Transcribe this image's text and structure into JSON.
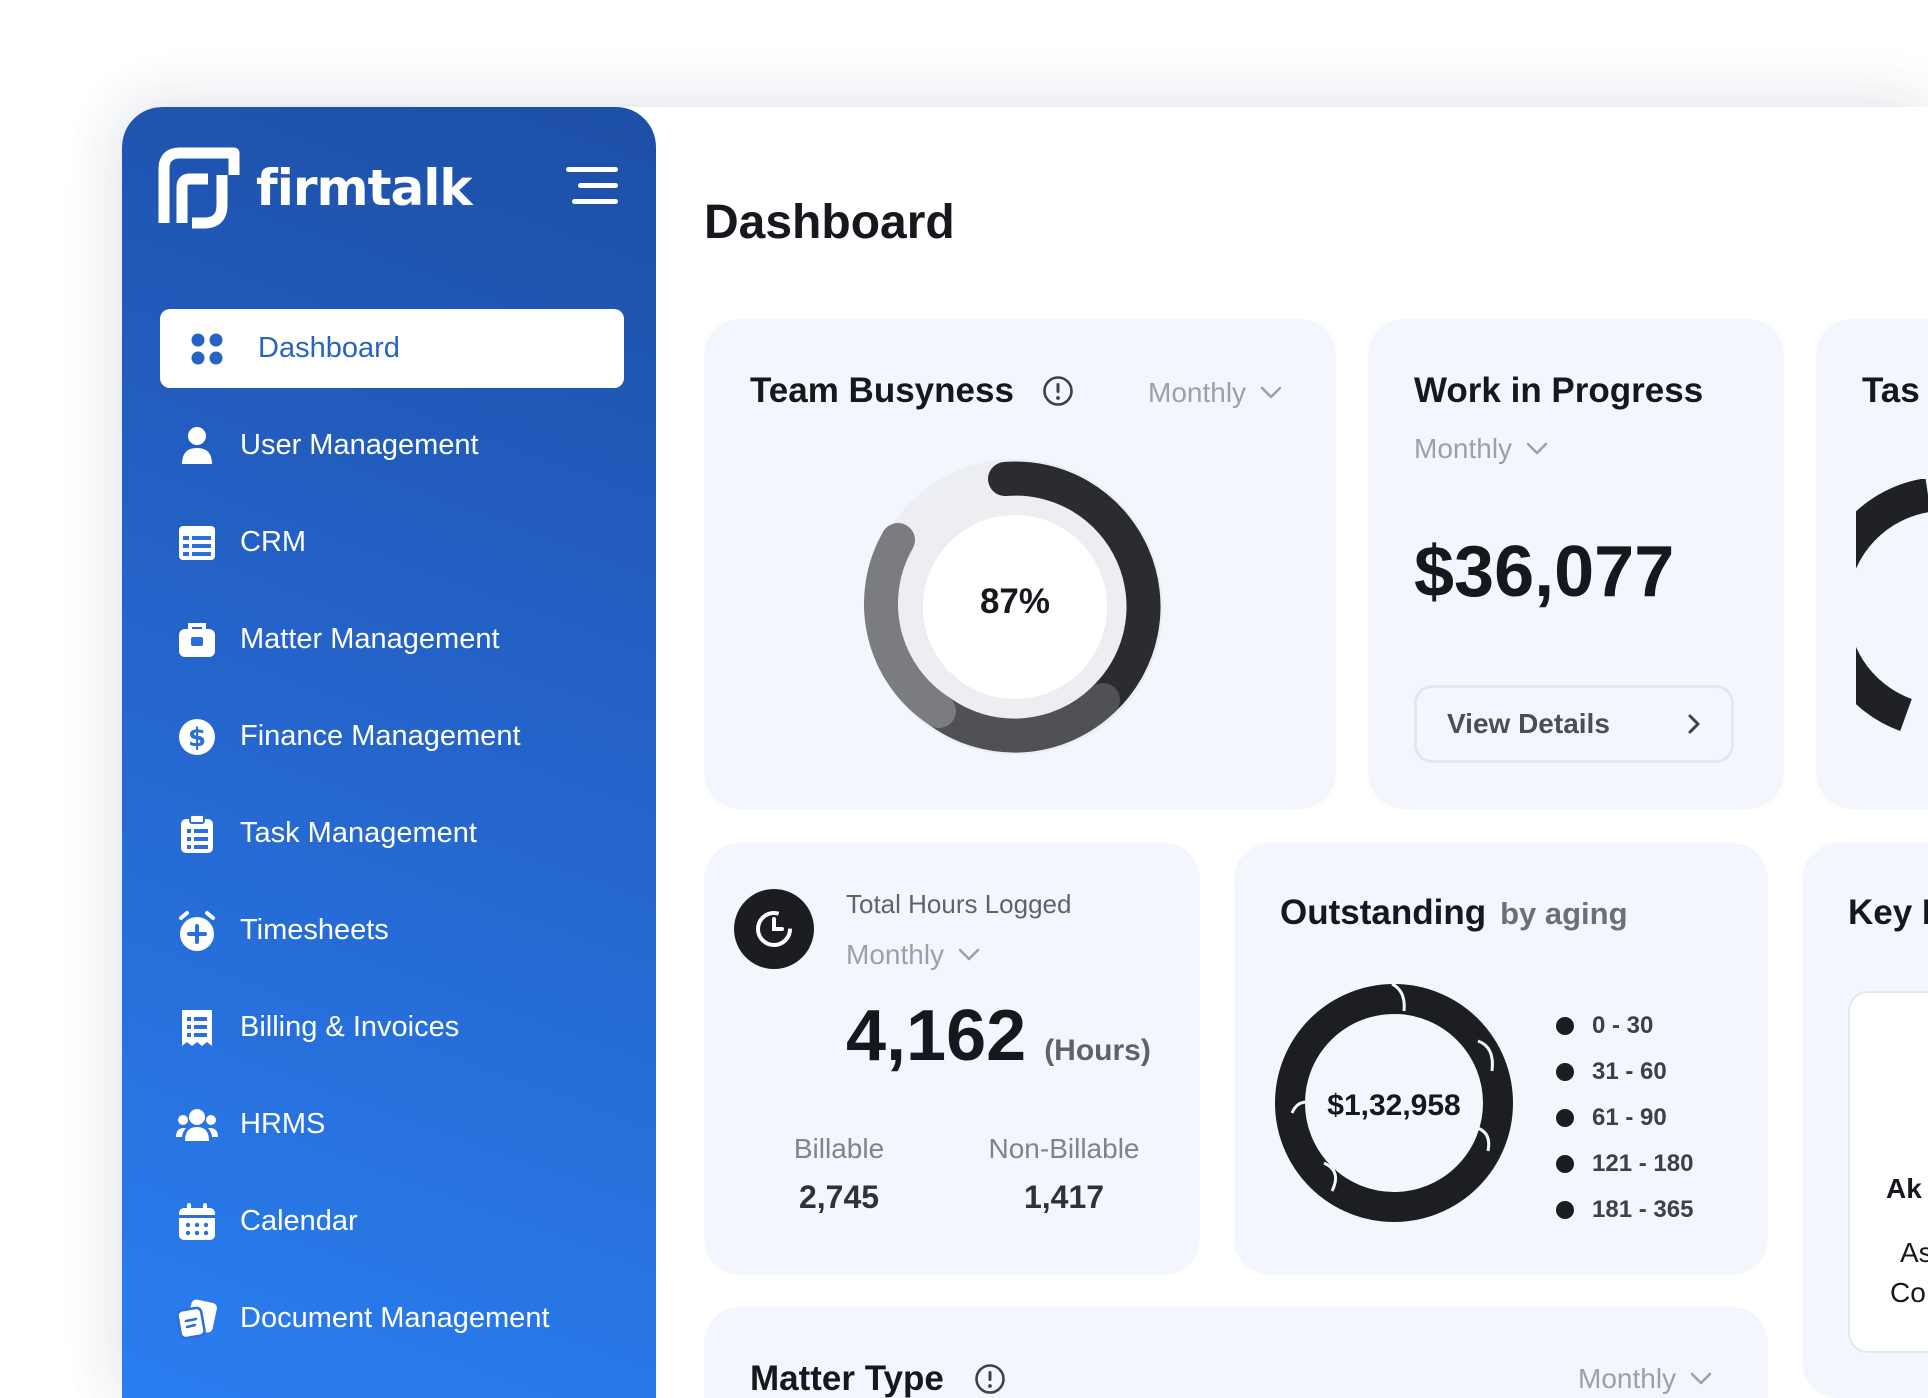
{
  "brand": {
    "name": "firmtalk"
  },
  "nav": [
    {
      "label": "Dashboard",
      "icon": "dashboard-icon",
      "active": true
    },
    {
      "label": "User Management",
      "icon": "user-icon"
    },
    {
      "label": "CRM",
      "icon": "crm-icon"
    },
    {
      "label": "Matter Management",
      "icon": "briefcase-icon"
    },
    {
      "label": "Finance Management",
      "icon": "dollar-icon"
    },
    {
      "label": "Task Management",
      "icon": "clipboard-icon"
    },
    {
      "label": "Timesheets",
      "icon": "alarm-clock-icon"
    },
    {
      "label": "Billing & Invoices",
      "icon": "receipt-icon"
    },
    {
      "label": "HRMS",
      "icon": "team-icon"
    },
    {
      "label": "Calendar",
      "icon": "calendar-icon"
    },
    {
      "label": "Document Management",
      "icon": "document-icon"
    }
  ],
  "page": {
    "title": "Dashboard"
  },
  "team_busyness": {
    "title": "Team Busyness",
    "period": "Monthly",
    "value": "87%"
  },
  "wip": {
    "title": "Work in Progress",
    "period": "Monthly",
    "amount": "$36,077",
    "button": "View Details"
  },
  "tasks_partial": {
    "title": "Tas"
  },
  "hours": {
    "title": "Total Hours Logged",
    "period": "Monthly",
    "total": "4,162",
    "unit": "(Hours)",
    "billable_label": "Billable",
    "billable_value": "2,745",
    "nonbillable_label": "Non-Billable",
    "nonbillable_value": "1,417"
  },
  "outstanding": {
    "title": "Outstanding",
    "subtitle": "by aging",
    "total": "$1,32,958",
    "legend": [
      "0 - 30",
      "31 - 60",
      "61 - 90",
      "121 - 180",
      "181 - 365"
    ]
  },
  "key_partial": {
    "title": "Key F",
    "line1": "Ak",
    "line2": "As",
    "line3": "Co"
  },
  "matter_type": {
    "title": "Matter Type",
    "period": "Monthly"
  },
  "colors": {
    "accent": "#2563c4",
    "sidebar_dark": "#1d4fa6",
    "sidebar_light": "#2a7ef0",
    "card": "#f3f7fd"
  }
}
